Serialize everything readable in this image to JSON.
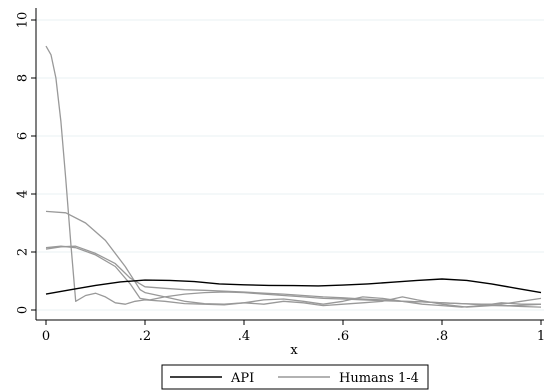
{
  "chart_data": {
    "type": "line",
    "title": "",
    "xlabel": "x",
    "ylabel": "",
    "xlim": [
      0,
      1
    ],
    "ylim": [
      0,
      10
    ],
    "x_ticks": [
      {
        "value": 0,
        "label": "0"
      },
      {
        "value": 0.2,
        "label": ".2"
      },
      {
        "value": 0.4,
        "label": ".4"
      },
      {
        "value": 0.6,
        "label": ".6"
      },
      {
        "value": 0.8,
        "label": ".8"
      },
      {
        "value": 1,
        "label": "1"
      }
    ],
    "y_ticks": [
      {
        "value": 0,
        "label": "0"
      },
      {
        "value": 2,
        "label": "2"
      },
      {
        "value": 4,
        "label": "4"
      },
      {
        "value": 6,
        "label": "6"
      },
      {
        "value": 8,
        "label": "8"
      },
      {
        "value": 10,
        "label": "10"
      }
    ],
    "grid": true,
    "legend_position": "bottom",
    "legend": [
      {
        "label": "API",
        "color": "#000000"
      },
      {
        "label": "Humans 1-4",
        "color": "#999999"
      }
    ],
    "series": [
      {
        "name": "API",
        "color": "#000000",
        "points": [
          [
            0,
            0.55
          ],
          [
            0.05,
            0.7
          ],
          [
            0.1,
            0.85
          ],
          [
            0.15,
            0.97
          ],
          [
            0.2,
            1.03
          ],
          [
            0.25,
            1.02
          ],
          [
            0.3,
            0.98
          ],
          [
            0.35,
            0.9
          ],
          [
            0.4,
            0.87
          ],
          [
            0.45,
            0.85
          ],
          [
            0.5,
            0.84
          ],
          [
            0.55,
            0.83
          ],
          [
            0.6,
            0.86
          ],
          [
            0.65,
            0.9
          ],
          [
            0.7,
            0.96
          ],
          [
            0.75,
            1.02
          ],
          [
            0.8,
            1.07
          ],
          [
            0.85,
            1.02
          ],
          [
            0.9,
            0.9
          ],
          [
            0.95,
            0.75
          ],
          [
            1,
            0.6
          ]
        ]
      },
      {
        "name": "Human 1",
        "color": "#999999",
        "points": [
          [
            0,
            9.1
          ],
          [
            0.01,
            8.8
          ],
          [
            0.02,
            8.0
          ],
          [
            0.03,
            6.5
          ],
          [
            0.04,
            4.5
          ],
          [
            0.05,
            2.3
          ],
          [
            0.06,
            0.3
          ],
          [
            0.08,
            0.5
          ],
          [
            0.1,
            0.58
          ],
          [
            0.12,
            0.45
          ],
          [
            0.14,
            0.25
          ],
          [
            0.16,
            0.2
          ],
          [
            0.18,
            0.3
          ],
          [
            0.2,
            0.35
          ],
          [
            0.24,
            0.3
          ],
          [
            0.28,
            0.22
          ],
          [
            0.32,
            0.2
          ],
          [
            0.36,
            0.18
          ],
          [
            0.4,
            0.25
          ],
          [
            0.44,
            0.2
          ],
          [
            0.48,
            0.3
          ],
          [
            0.52,
            0.25
          ],
          [
            0.56,
            0.15
          ],
          [
            0.6,
            0.2
          ],
          [
            0.64,
            0.25
          ],
          [
            0.68,
            0.3
          ],
          [
            0.72,
            0.45
          ],
          [
            0.75,
            0.35
          ],
          [
            0.8,
            0.2
          ],
          [
            0.85,
            0.1
          ],
          [
            0.9,
            0.15
          ],
          [
            0.95,
            0.15
          ],
          [
            1,
            0.2
          ]
        ]
      },
      {
        "name": "Human 2",
        "color": "#999999",
        "points": [
          [
            0,
            3.4
          ],
          [
            0.04,
            3.35
          ],
          [
            0.08,
            3.0
          ],
          [
            0.12,
            2.4
          ],
          [
            0.16,
            1.5
          ],
          [
            0.19,
            0.7
          ],
          [
            0.2,
            0.6
          ],
          [
            0.24,
            0.45
          ],
          [
            0.28,
            0.3
          ],
          [
            0.32,
            0.22
          ],
          [
            0.36,
            0.2
          ],
          [
            0.4,
            0.25
          ],
          [
            0.44,
            0.35
          ],
          [
            0.48,
            0.38
          ],
          [
            0.52,
            0.3
          ],
          [
            0.56,
            0.2
          ],
          [
            0.6,
            0.3
          ],
          [
            0.64,
            0.45
          ],
          [
            0.68,
            0.4
          ],
          [
            0.72,
            0.3
          ],
          [
            0.76,
            0.2
          ],
          [
            0.8,
            0.15
          ],
          [
            0.84,
            0.1
          ],
          [
            0.88,
            0.15
          ],
          [
            0.92,
            0.25
          ],
          [
            0.96,
            0.2
          ],
          [
            1,
            0.2
          ]
        ]
      },
      {
        "name": "Human 3",
        "color": "#999999",
        "points": [
          [
            0,
            2.15
          ],
          [
            0.03,
            2.2
          ],
          [
            0.06,
            2.15
          ],
          [
            0.1,
            1.9
          ],
          [
            0.14,
            1.5
          ],
          [
            0.17,
            0.9
          ],
          [
            0.19,
            0.4
          ],
          [
            0.21,
            0.35
          ],
          [
            0.24,
            0.45
          ],
          [
            0.28,
            0.55
          ],
          [
            0.32,
            0.6
          ],
          [
            0.36,
            0.62
          ],
          [
            0.4,
            0.6
          ],
          [
            0.44,
            0.55
          ],
          [
            0.48,
            0.5
          ],
          [
            0.52,
            0.45
          ],
          [
            0.56,
            0.4
          ],
          [
            0.6,
            0.38
          ],
          [
            0.64,
            0.35
          ],
          [
            0.68,
            0.32
          ],
          [
            0.72,
            0.3
          ],
          [
            0.76,
            0.28
          ],
          [
            0.8,
            0.25
          ],
          [
            0.84,
            0.22
          ],
          [
            0.88,
            0.2
          ],
          [
            0.92,
            0.2
          ],
          [
            0.96,
            0.3
          ],
          [
            1,
            0.4
          ]
        ]
      },
      {
        "name": "Human 4",
        "color": "#999999",
        "points": [
          [
            0,
            2.1
          ],
          [
            0.03,
            2.18
          ],
          [
            0.06,
            2.2
          ],
          [
            0.1,
            1.95
          ],
          [
            0.14,
            1.6
          ],
          [
            0.17,
            1.1
          ],
          [
            0.2,
            0.8
          ],
          [
            0.24,
            0.75
          ],
          [
            0.28,
            0.7
          ],
          [
            0.32,
            0.68
          ],
          [
            0.36,
            0.65
          ],
          [
            0.4,
            0.62
          ],
          [
            0.44,
            0.58
          ],
          [
            0.48,
            0.55
          ],
          [
            0.52,
            0.5
          ],
          [
            0.56,
            0.45
          ],
          [
            0.6,
            0.42
          ],
          [
            0.64,
            0.38
          ],
          [
            0.68,
            0.35
          ],
          [
            0.72,
            0.3
          ],
          [
            0.76,
            0.28
          ],
          [
            0.8,
            0.25
          ],
          [
            0.84,
            0.22
          ],
          [
            0.88,
            0.18
          ],
          [
            0.92,
            0.15
          ],
          [
            0.96,
            0.12
          ],
          [
            1,
            0.1
          ]
        ]
      }
    ]
  }
}
